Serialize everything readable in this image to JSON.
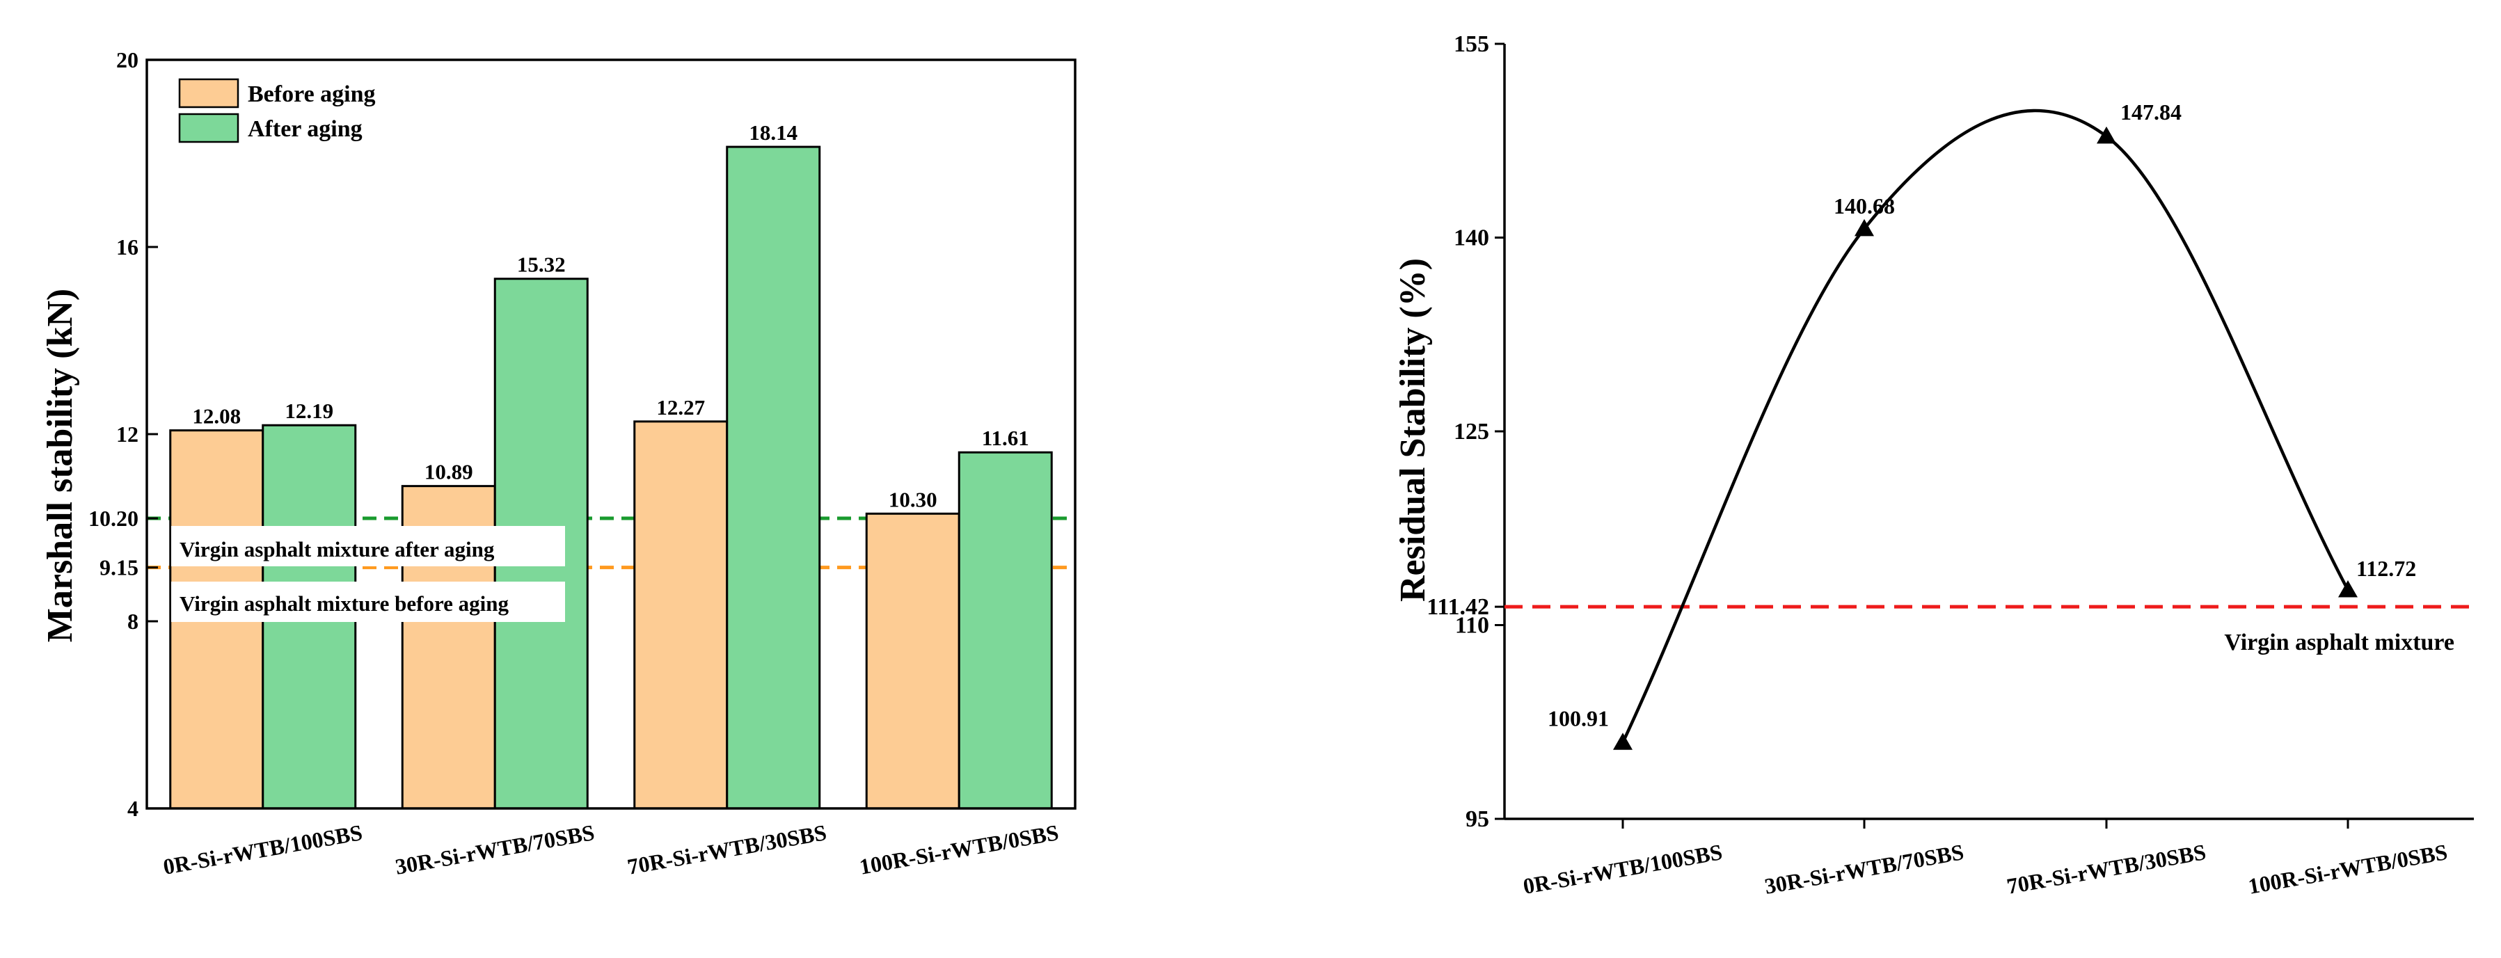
{
  "colors": {
    "before": "#fdcc94",
    "after": "#7dd899",
    "green_line": "#1a9b2e",
    "orange_line": "#ff9a1f",
    "red_line": "#ee1b1b",
    "axis": "#000000"
  },
  "chart_data": [
    {
      "type": "bar",
      "title": "",
      "xlabel": "",
      "ylabel": "Marshall stability (kN)",
      "ylim": [
        4,
        20
      ],
      "y_ticks": [
        "4",
        "8",
        "9.15",
        "10.20",
        "12",
        "16",
        "20"
      ],
      "categories": [
        "0R-Si-rWTB/100SBS",
        "30R-Si-rWTB/70SBS",
        "70R-Si-rWTB/30SBS",
        "100R-Si-rWTB/0SBS"
      ],
      "series": [
        {
          "name": "Before aging",
          "values": [
            12.08,
            10.89,
            12.27,
            10.3
          ],
          "labels": [
            "12.08",
            "10.89",
            "12.27",
            "10.30"
          ]
        },
        {
          "name": "After aging",
          "values": [
            12.19,
            15.32,
            18.14,
            11.61
          ],
          "labels": [
            "12.19",
            "15.32",
            "18.14",
            "11.61"
          ]
        }
      ],
      "reference_lines": [
        {
          "value": 10.2,
          "label": "Virgin asphalt mixture after aging",
          "color": "green"
        },
        {
          "value": 9.15,
          "label": "Virgin asphalt mixture before aging",
          "color": "orange"
        }
      ],
      "legend_position": "top-left"
    },
    {
      "type": "line",
      "title": "",
      "xlabel": "",
      "ylabel": "Residual Stability (%)",
      "ylim": [
        95,
        155
      ],
      "y_ticks": [
        "95",
        "110",
        "111.42",
        "125",
        "140",
        "155"
      ],
      "categories": [
        "0R-Si-rWTB/100SBS",
        "30R-Si-rWTB/70SBS",
        "70R-Si-rWTB/30SBS",
        "100R-Si-rWTB/0SBS"
      ],
      "series": [
        {
          "name": "Residual stability",
          "values": [
            100.91,
            140.68,
            147.84,
            112.72
          ],
          "labels": [
            "100.91",
            "140.68",
            "147.84",
            "112.72"
          ]
        }
      ],
      "reference_lines": [
        {
          "value": 111.42,
          "label": "Virgin asphalt mixture",
          "color": "red"
        }
      ]
    }
  ]
}
